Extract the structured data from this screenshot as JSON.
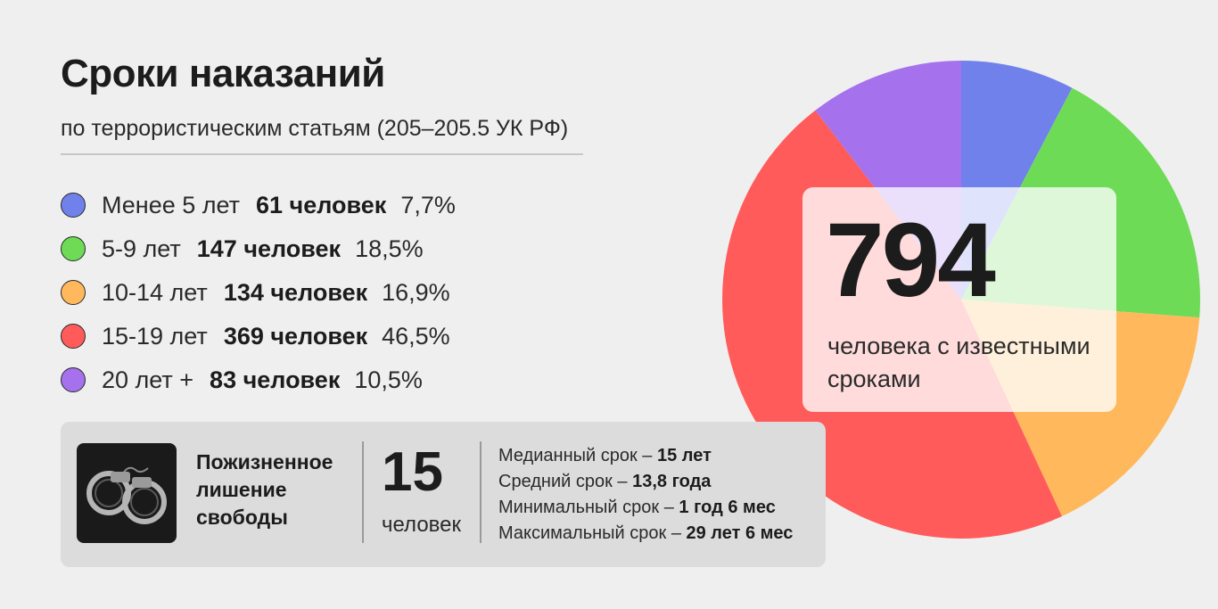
{
  "header": {
    "title": "Сроки наказаний",
    "subtitle": "по террористическим статьям (205–205.5 УК РФ)"
  },
  "legend": [
    {
      "label": "Менее 5 лет",
      "count": "61 человек",
      "pct": "7,7%",
      "color": "#7081ec"
    },
    {
      "label": "5-9 лет",
      "count": "147 человек",
      "pct": "18,5%",
      "color": "#6ddb55"
    },
    {
      "label": "10-14 лет",
      "count": "134 человек",
      "pct": "16,9%",
      "color": "#ffb95c"
    },
    {
      "label": "15-19 лет",
      "count": "369 человек",
      "pct": "46,5%",
      "color": "#ff5b5b"
    },
    {
      "label": "20 лет +",
      "count": "83 человек",
      "pct": "10,5%",
      "color": "#a571ec"
    }
  ],
  "life_sentence": {
    "icon": "handcuffs-icon",
    "label": "Пожизненное лишение свободы",
    "count": "15",
    "unit": "человек"
  },
  "stats": [
    {
      "label": "Медианный срок – ",
      "value": "15 лет"
    },
    {
      "label": "Средний срок – ",
      "value": "13,8 года"
    },
    {
      "label": "Минимальный срок – ",
      "value": "1 год 6 мес"
    },
    {
      "label": "Максимальный срок – ",
      "value": "29 лет 6 мес"
    }
  ],
  "total": {
    "number": "794",
    "caption": "человека с известными сроками"
  },
  "chart_data": {
    "type": "pie",
    "categories": [
      "Менее 5 лет",
      "5-9 лет",
      "10-14 лет",
      "15-19 лет",
      "20 лет +"
    ],
    "values": [
      61,
      147,
      134,
      369,
      83
    ],
    "percentages": [
      7.7,
      18.5,
      16.9,
      46.5,
      10.5
    ],
    "colors": [
      "#7081ec",
      "#6ddb55",
      "#ffb95c",
      "#ff5b5b",
      "#a571ec"
    ],
    "total": 794,
    "start": "12 o'clock, clockwise"
  }
}
